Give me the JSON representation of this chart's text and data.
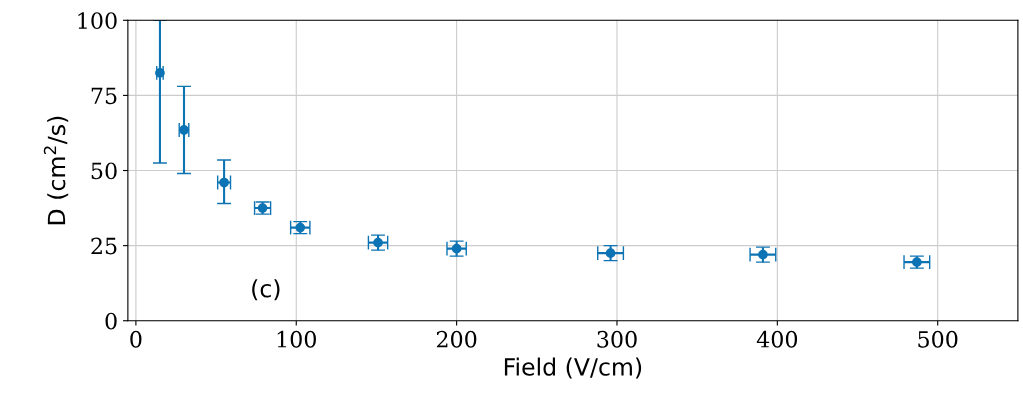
{
  "chart_data": {
    "type": "scatter",
    "xlabel": "Field (V/cm)",
    "ylabel": "D (cm$^{2}$/s)",
    "x": [
      15,
      30,
      55,
      79,
      102.5,
      151,
      200,
      296,
      391,
      487
    ],
    "values": [
      82.5,
      63.5,
      46,
      37.5,
      31,
      26,
      24,
      22.5,
      22,
      19.5
    ],
    "errors": [
      [
        52.5,
        100
      ],
      [
        49,
        78
      ],
      [
        39,
        53.5
      ],
      2,
      2,
      2.5,
      2.5,
      2.5,
      2.5,
      2
    ],
    "xerrors": [
      2,
      3,
      4,
      5,
      6,
      6,
      6,
      8,
      8,
      8
    ],
    "color": "#0c73b4",
    "marker": "circle",
    "grid": true,
    "xlim": [
      -5,
      550
    ],
    "ylim": [
      0,
      100
    ],
    "xticks": [
      0,
      100,
      200,
      300,
      400,
      500
    ],
    "yticks": [
      0,
      25,
      50,
      75,
      100
    ],
    "annotations": [
      "(c)"
    ]
  }
}
